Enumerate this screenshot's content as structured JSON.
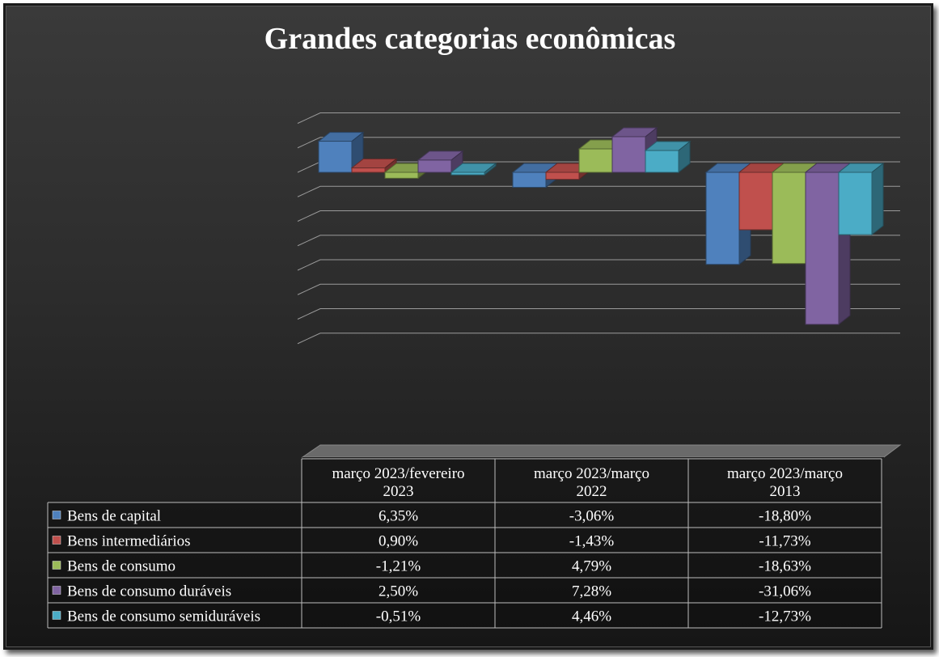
{
  "chart_data": {
    "type": "bar",
    "title": "Grandes categorias econômicas",
    "categories": [
      "março 2023/fevereiro 2023",
      "março 2023/março 2022",
      "março 2023/março 2013"
    ],
    "category_lines": [
      [
        "março 2023/fevereiro",
        "2023"
      ],
      [
        "março 2023/março",
        "2022"
      ],
      [
        "março 2023/março",
        "2013"
      ]
    ],
    "series": [
      {
        "name": "Bens de capital",
        "values": [
          6.35,
          -3.06,
          -18.8
        ],
        "labels": [
          "6,35%",
          "-3,06%",
          "-18,80%"
        ],
        "color": "#4f81bd"
      },
      {
        "name": "Bens intermediários",
        "values": [
          0.9,
          -1.43,
          -11.73
        ],
        "labels": [
          "0,90%",
          "-1,43%",
          "-11,73%"
        ],
        "color": "#c0504d"
      },
      {
        "name": "Bens de consumo",
        "values": [
          -1.21,
          4.79,
          -18.63
        ],
        "labels": [
          "-1,21%",
          "4,79%",
          "-18,63%"
        ],
        "color": "#9bbb59"
      },
      {
        "name": "Bens de consumo duráveis",
        "values": [
          2.5,
          7.28,
          -31.06
        ],
        "labels": [
          "2,50%",
          "7,28%",
          "-31,06%"
        ],
        "color": "#8064a2"
      },
      {
        "name": "Bens de consumo semiduráveis",
        "values": [
          -0.51,
          4.46,
          -12.73
        ],
        "labels": [
          "-0,51%",
          "4,46%",
          "-12,73%"
        ],
        "color": "#4bacc6"
      }
    ],
    "ylim": [
      -35,
      10
    ],
    "grid": true,
    "data_table": true,
    "legend": "table-left",
    "background": "#2b2b2b"
  }
}
